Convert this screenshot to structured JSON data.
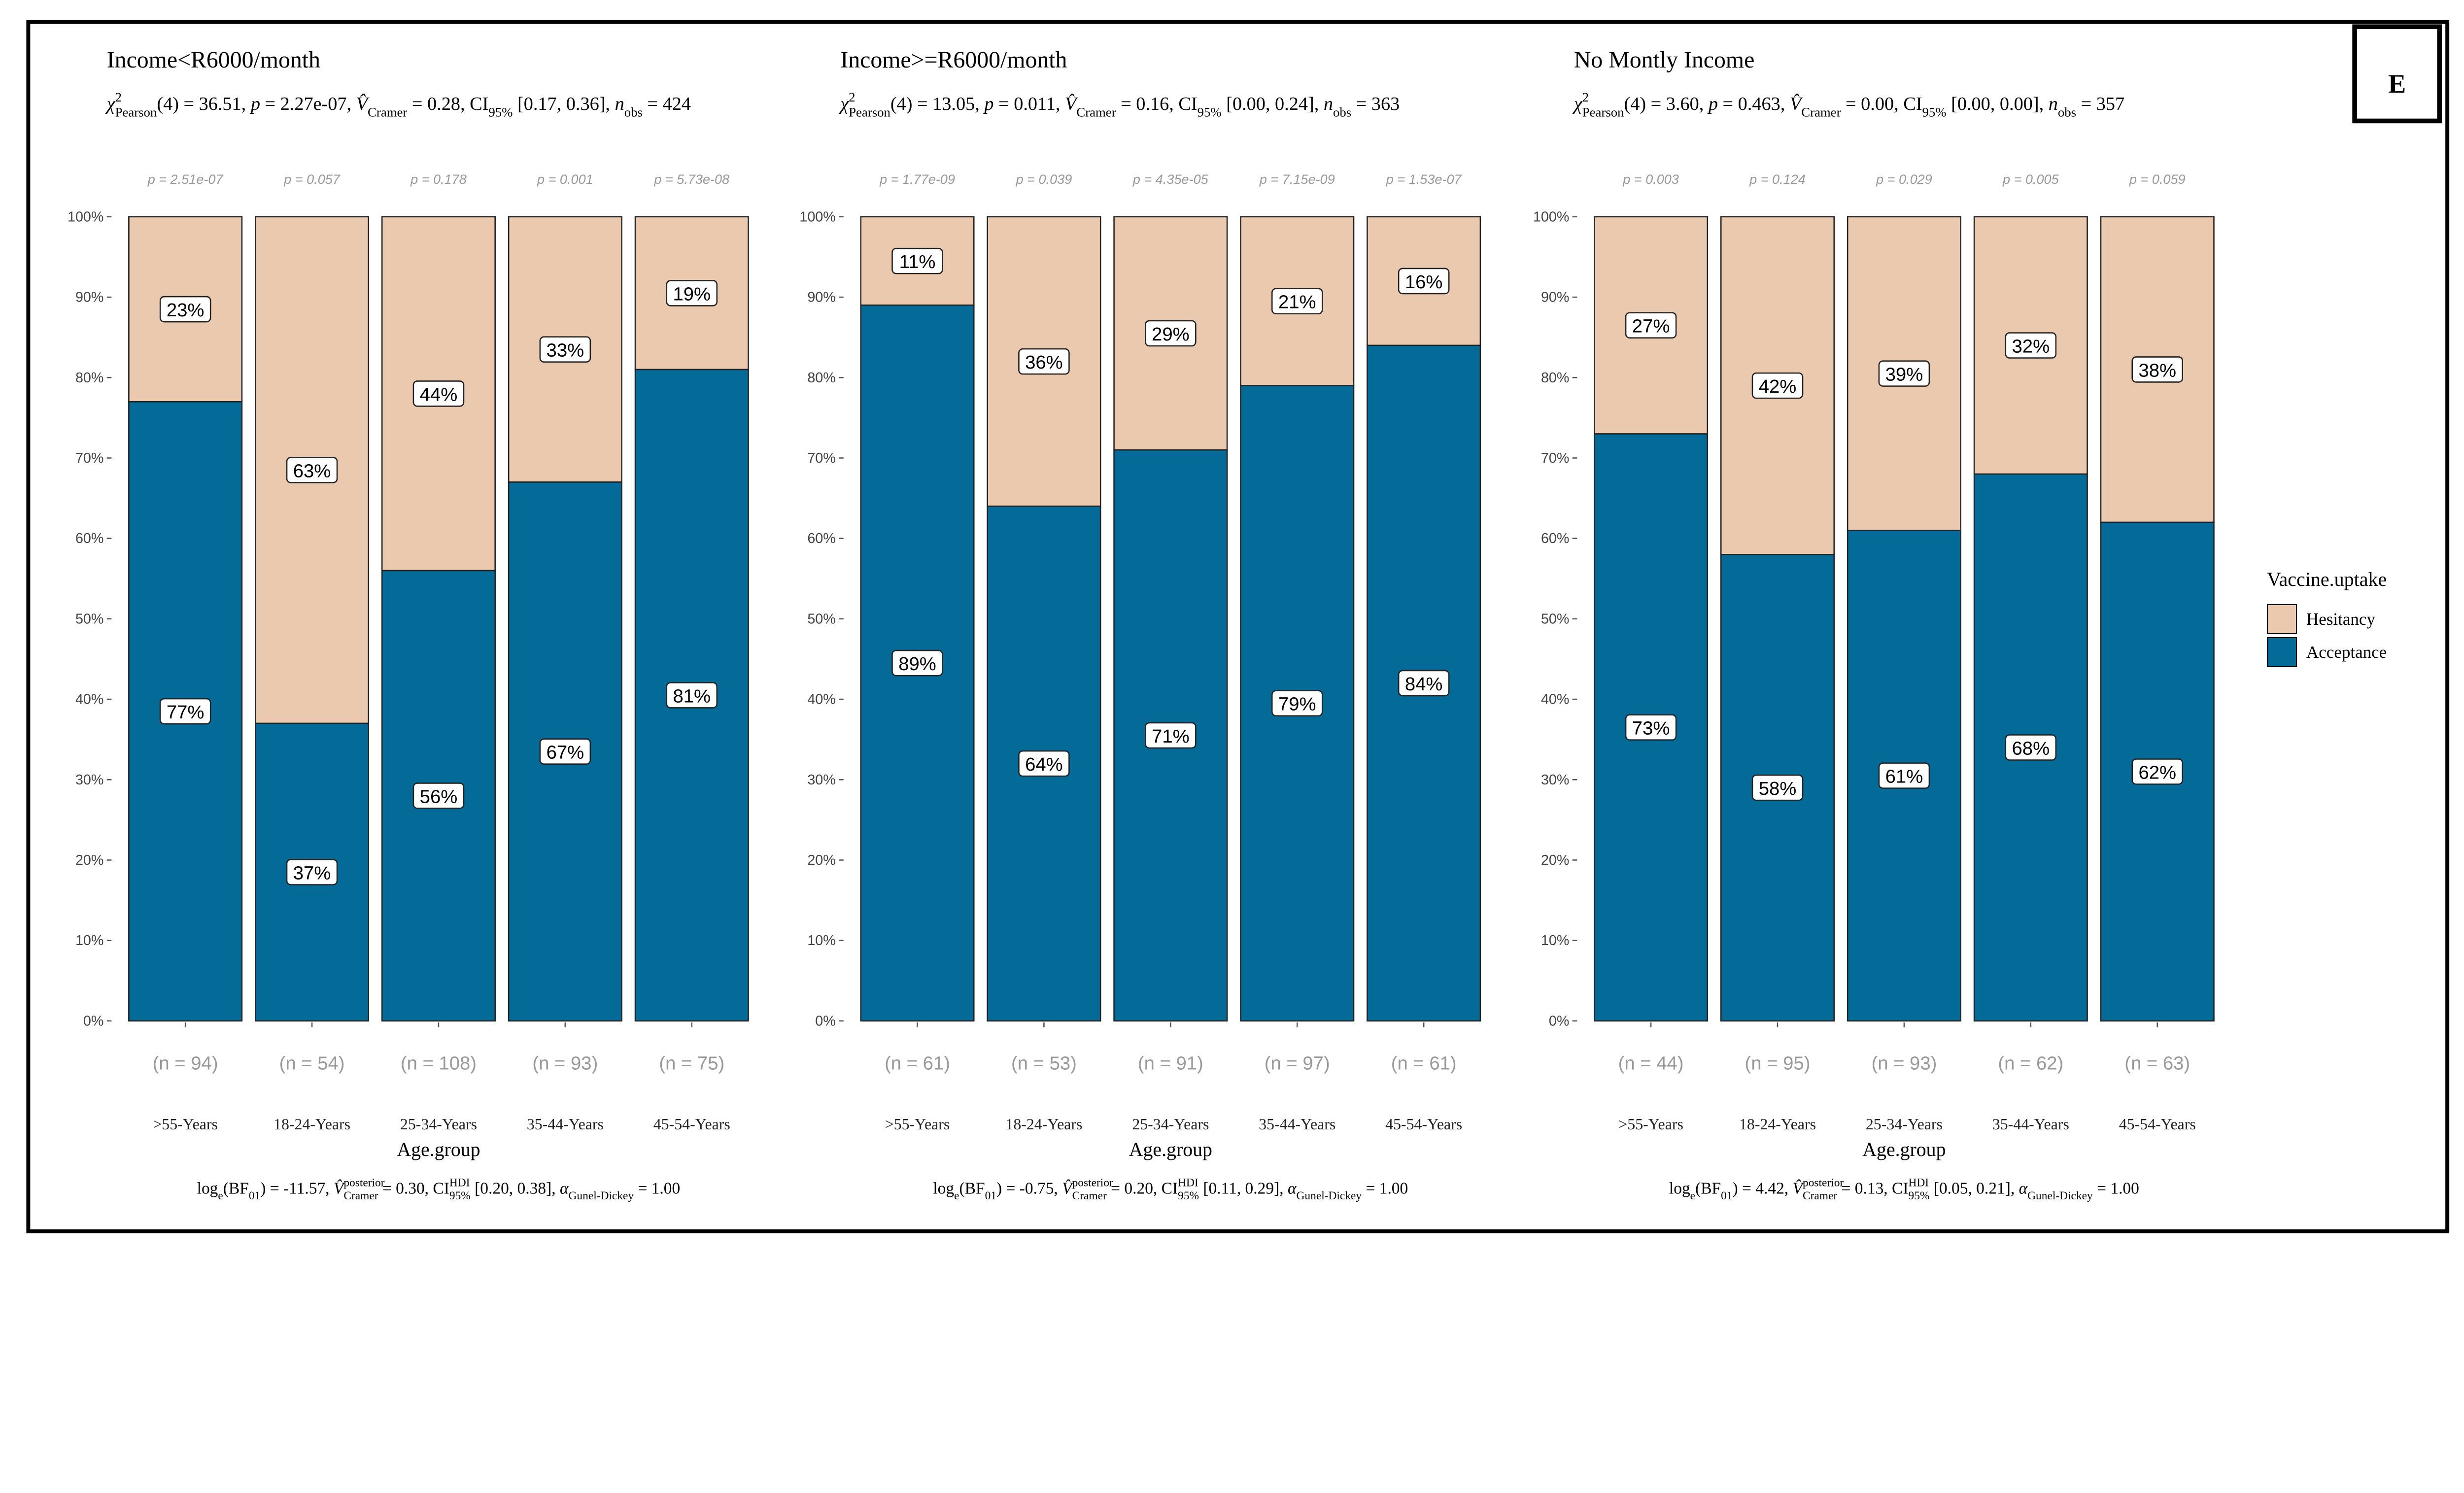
{
  "panel_label": "E",
  "legend": {
    "title": "Vaccine.uptake",
    "items": [
      {
        "name": "Hesitancy",
        "color": "#EBC9AE"
      },
      {
        "name": "Acceptance",
        "color": "#046A98"
      }
    ]
  },
  "chart_data": [
    {
      "type": "bar",
      "stacked": true,
      "title": "Income<R6000/month",
      "subtitle": [
        {
          "t": "χ",
          "s": "it"
        },
        {
          "t": "2",
          "s": "sup"
        },
        {
          "t": "Pearson",
          "s": "sub",
          "back": true
        },
        {
          "t": "(4) = 36.51, "
        },
        {
          "t": "p",
          "s": "it"
        },
        {
          "t": " = 2.27e-07, "
        },
        {
          "t": "V̂",
          "s": "it"
        },
        {
          "t": "Cramer",
          "s": "sub"
        },
        {
          "t": " = 0.28, CI"
        },
        {
          "t": "95%",
          "s": "sub"
        },
        {
          "t": " [0.17, 0.36], "
        },
        {
          "t": "n",
          "s": "it"
        },
        {
          "t": "obs",
          "s": "sub"
        },
        {
          "t": " = 424"
        }
      ],
      "caption": [
        {
          "t": "log"
        },
        {
          "t": "e",
          "s": "sub"
        },
        {
          "t": "(BF"
        },
        {
          "t": "01",
          "s": "sub"
        },
        {
          "t": ") = -11.57, "
        },
        {
          "t": "V̂",
          "s": "it"
        },
        {
          "t": "posterior",
          "s": "sup"
        },
        {
          "t": "Cramer",
          "s": "sub",
          "back": true
        },
        {
          "t": " = 0.30, CI"
        },
        {
          "t": "HDI",
          "s": "sup"
        },
        {
          "t": "95%",
          "s": "sub",
          "back": true
        },
        {
          "t": " [0.20, 0.38], "
        },
        {
          "t": "α",
          "s": "it"
        },
        {
          "t": "Gunel-Dickey",
          "s": "sub"
        },
        {
          "t": " = 1.00"
        }
      ],
      "xlabel": "Age.group",
      "categories": [
        ">55-Years",
        "18-24-Years",
        "25-34-Years",
        "35-44-Years",
        "45-54-Years"
      ],
      "n_labels": [
        "(n = 94)",
        "(n = 54)",
        "(n = 108)",
        "(n = 93)",
        "(n = 75)"
      ],
      "p_labels": [
        "p = 2.51e-07",
        "p = 0.057",
        "p = 0.178",
        "p = 0.001",
        "p = 5.73e-08"
      ],
      "series": [
        {
          "name": "Acceptance",
          "values": [
            77,
            37,
            56,
            67,
            81
          ]
        },
        {
          "name": "Hesitancy",
          "values": [
            23,
            63,
            44,
            33,
            19
          ]
        }
      ],
      "yticks": [
        "0%",
        "10%",
        "20%",
        "30%",
        "40%",
        "50%",
        "60%",
        "70%",
        "80%",
        "90%",
        "100%"
      ],
      "ylim": [
        0,
        100
      ]
    },
    {
      "type": "bar",
      "stacked": true,
      "title": "Income>=R6000/month",
      "subtitle": [
        {
          "t": "χ",
          "s": "it"
        },
        {
          "t": "2",
          "s": "sup"
        },
        {
          "t": "Pearson",
          "s": "sub",
          "back": true
        },
        {
          "t": "(4) = 13.05, "
        },
        {
          "t": "p",
          "s": "it"
        },
        {
          "t": " = 0.011, "
        },
        {
          "t": "V̂",
          "s": "it"
        },
        {
          "t": "Cramer",
          "s": "sub"
        },
        {
          "t": " = 0.16, CI"
        },
        {
          "t": "95%",
          "s": "sub"
        },
        {
          "t": " [0.00, 0.24], "
        },
        {
          "t": "n",
          "s": "it"
        },
        {
          "t": "obs",
          "s": "sub"
        },
        {
          "t": " = 363"
        }
      ],
      "caption": [
        {
          "t": "log"
        },
        {
          "t": "e",
          "s": "sub"
        },
        {
          "t": "(BF"
        },
        {
          "t": "01",
          "s": "sub"
        },
        {
          "t": ") = -0.75, "
        },
        {
          "t": "V̂",
          "s": "it"
        },
        {
          "t": "posterior",
          "s": "sup"
        },
        {
          "t": "Cramer",
          "s": "sub",
          "back": true
        },
        {
          "t": " = 0.20, CI"
        },
        {
          "t": "HDI",
          "s": "sup"
        },
        {
          "t": "95%",
          "s": "sub",
          "back": true
        },
        {
          "t": " [0.11, 0.29], "
        },
        {
          "t": "α",
          "s": "it"
        },
        {
          "t": "Gunel-Dickey",
          "s": "sub"
        },
        {
          "t": " = 1.00"
        }
      ],
      "xlabel": "Age.group",
      "categories": [
        ">55-Years",
        "18-24-Years",
        "25-34-Years",
        "35-44-Years",
        "45-54-Years"
      ],
      "n_labels": [
        "(n = 61)",
        "(n = 53)",
        "(n = 91)",
        "(n = 97)",
        "(n = 61)"
      ],
      "p_labels": [
        "p = 1.77e-09",
        "p = 0.039",
        "p = 4.35e-05",
        "p = 7.15e-09",
        "p = 1.53e-07"
      ],
      "series": [
        {
          "name": "Acceptance",
          "values": [
            89,
            64,
            71,
            79,
            84
          ]
        },
        {
          "name": "Hesitancy",
          "values": [
            11,
            36,
            29,
            21,
            16
          ]
        }
      ],
      "yticks": [
        "0%",
        "10%",
        "20%",
        "30%",
        "40%",
        "50%",
        "60%",
        "70%",
        "80%",
        "90%",
        "100%"
      ],
      "ylim": [
        0,
        100
      ]
    },
    {
      "type": "bar",
      "stacked": true,
      "title": "No Montly Income",
      "subtitle": [
        {
          "t": "χ",
          "s": "it"
        },
        {
          "t": "2",
          "s": "sup"
        },
        {
          "t": "Pearson",
          "s": "sub",
          "back": true
        },
        {
          "t": "(4) = 3.60, "
        },
        {
          "t": "p",
          "s": "it"
        },
        {
          "t": " = 0.463, "
        },
        {
          "t": "V̂",
          "s": "it"
        },
        {
          "t": "Cramer",
          "s": "sub"
        },
        {
          "t": " = 0.00, CI"
        },
        {
          "t": "95%",
          "s": "sub"
        },
        {
          "t": " [0.00, 0.00], "
        },
        {
          "t": "n",
          "s": "it"
        },
        {
          "t": "obs",
          "s": "sub"
        },
        {
          "t": " = 357"
        }
      ],
      "caption": [
        {
          "t": "log"
        },
        {
          "t": "e",
          "s": "sub"
        },
        {
          "t": "(BF"
        },
        {
          "t": "01",
          "s": "sub"
        },
        {
          "t": ") = 4.42, "
        },
        {
          "t": "V̂",
          "s": "it"
        },
        {
          "t": "posterior",
          "s": "sup"
        },
        {
          "t": "Cramer",
          "s": "sub",
          "back": true
        },
        {
          "t": " = 0.13, CI"
        },
        {
          "t": "HDI",
          "s": "sup"
        },
        {
          "t": "95%",
          "s": "sub",
          "back": true
        },
        {
          "t": " [0.05, 0.21], "
        },
        {
          "t": "α",
          "s": "it"
        },
        {
          "t": "Gunel-Dickey",
          "s": "sub"
        },
        {
          "t": " = 1.00"
        }
      ],
      "xlabel": "Age.group",
      "categories": [
        ">55-Years",
        "18-24-Years",
        "25-34-Years",
        "35-44-Years",
        "45-54-Years"
      ],
      "n_labels": [
        "(n = 44)",
        "(n = 95)",
        "(n = 93)",
        "(n = 62)",
        "(n = 63)"
      ],
      "p_labels": [
        "p = 0.003",
        "p = 0.124",
        "p = 0.029",
        "p = 0.005",
        "p = 0.059"
      ],
      "series": [
        {
          "name": "Acceptance",
          "values": [
            73,
            58,
            61,
            68,
            62
          ]
        },
        {
          "name": "Hesitancy",
          "values": [
            27,
            42,
            39,
            32,
            38
          ]
        }
      ],
      "yticks": [
        "0%",
        "10%",
        "20%",
        "30%",
        "40%",
        "50%",
        "60%",
        "70%",
        "80%",
        "90%",
        "100%"
      ],
      "ylim": [
        0,
        100
      ]
    }
  ]
}
